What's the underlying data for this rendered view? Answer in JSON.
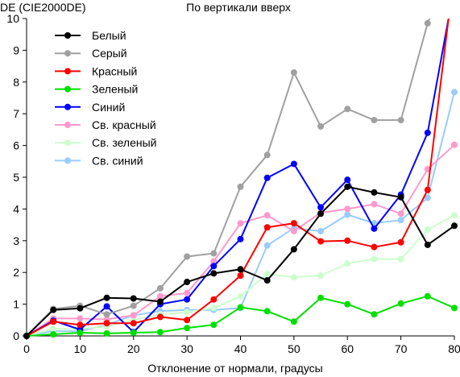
{
  "chart_data": {
    "type": "line",
    "title": "По вертикали вверх",
    "ylabel": "DE (CIE2000DE)",
    "xlabel": "Отклонение от нормали, градусы",
    "x": [
      0,
      5,
      10,
      15,
      20,
      25,
      30,
      35,
      40,
      45,
      50,
      55,
      60,
      65,
      70,
      75,
      80
    ],
    "xlim": [
      0,
      80
    ],
    "ylim": [
      0,
      10
    ],
    "xticks": [
      "0",
      "10",
      "20",
      "30",
      "40",
      "50",
      "60",
      "70",
      "80"
    ],
    "xtick_values": [
      0,
      10,
      20,
      30,
      40,
      50,
      60,
      70,
      80
    ],
    "yticks": [
      "0",
      "1",
      "2",
      "3",
      "4",
      "5",
      "6",
      "7",
      "8",
      "9",
      "10"
    ],
    "ytick_values": [
      0,
      1,
      2,
      3,
      4,
      5,
      6,
      7,
      8,
      9,
      10
    ],
    "grid": false,
    "legend_position": "top-left",
    "series": [
      {
        "name": "Белый",
        "color": "#000000",
        "values": [
          0,
          0.82,
          0.87,
          1.2,
          1.18,
          1.08,
          1.7,
          1.97,
          2.1,
          1.75,
          2.73,
          3.85,
          4.7,
          4.52,
          4.37,
          2.87,
          3.47
        ]
      },
      {
        "name": "Серый",
        "color": "#a0a0a0",
        "values": [
          0,
          0.85,
          0.95,
          0.68,
          0.95,
          1.5,
          2.5,
          2.6,
          4.7,
          5.7,
          8.3,
          6.6,
          7.15,
          6.8,
          6.8,
          9.85,
          12.0
        ]
      },
      {
        "name": "Красный",
        "color": "#ff0000",
        "values": [
          0,
          0.45,
          0.35,
          0.4,
          0.4,
          0.6,
          0.5,
          1.15,
          1.9,
          3.42,
          3.55,
          2.98,
          3.0,
          2.8,
          2.95,
          4.6,
          11.5
        ]
      },
      {
        "name": "Зеленый",
        "color": "#00e000",
        "values": [
          0,
          0.05,
          0.1,
          0.08,
          0.1,
          0.12,
          0.25,
          0.35,
          0.9,
          0.78,
          0.45,
          1.2,
          1.0,
          0.68,
          1.02,
          1.25,
          0.88
        ]
      },
      {
        "name": "Синий",
        "color": "#0000ff",
        "values": [
          0,
          0.48,
          0.2,
          0.93,
          0.12,
          1.0,
          1.15,
          2.2,
          3.05,
          4.98,
          5.42,
          4.05,
          4.92,
          3.38,
          4.45,
          6.4,
          11.0
        ]
      },
      {
        "name": "Св. красный",
        "color": "#ff99cc",
        "values": [
          0,
          0.55,
          0.55,
          0.52,
          0.65,
          1.25,
          1.35,
          2.35,
          3.55,
          3.8,
          3.3,
          3.88,
          4.0,
          4.15,
          3.85,
          5.25,
          6.02
        ]
      },
      {
        "name": "Св. зеленый",
        "color": "#ccffcc",
        "values": [
          0,
          0.22,
          0.22,
          0.3,
          0.5,
          0.68,
          0.75,
          0.88,
          1.25,
          1.95,
          1.85,
          1.9,
          2.28,
          2.42,
          2.42,
          3.35,
          3.8
        ]
      },
      {
        "name": "Св. синий",
        "color": "#99ccff",
        "values": [
          0,
          0.15,
          0.15,
          0.35,
          0.65,
          0.78,
          0.82,
          0.82,
          0.88,
          2.85,
          3.4,
          3.3,
          3.82,
          3.55,
          3.65,
          4.35,
          7.68
        ]
      }
    ]
  }
}
